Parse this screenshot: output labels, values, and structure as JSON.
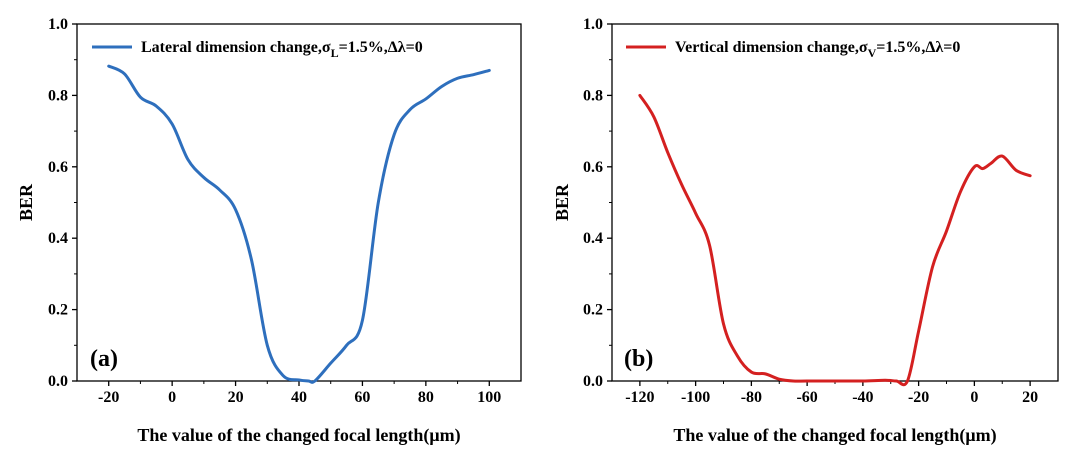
{
  "chart_data": [
    {
      "type": "line",
      "panel_label": "(a)",
      "xlabel": "The value of the changed focal length(μm)",
      "ylabel": "BER",
      "xlim": [
        -30,
        110
      ],
      "ylim": [
        0,
        1.0
      ],
      "xticks": [
        -20,
        0,
        20,
        40,
        60,
        80,
        100
      ],
      "yticks": [
        0.0,
        0.2,
        0.4,
        0.6,
        0.8,
        1.0
      ],
      "xtick_labels": [
        "-20",
        "0",
        "20",
        "40",
        "60",
        "80",
        "100"
      ],
      "ytick_labels": [
        "0.0",
        "0.2",
        "0.4",
        "0.6",
        "0.8",
        "1.0"
      ],
      "grid": false,
      "legend_position": "top",
      "legend": {
        "prefix": "Lateral dimension change,σ",
        "sub": "L",
        "suffix": "=1.5%,Δλ=0"
      },
      "series": [
        {
          "color": "#2e6fbd",
          "x": [
            -20,
            -15,
            -10,
            -5,
            0,
            5,
            10,
            15,
            20,
            25,
            30,
            35,
            40,
            43,
            45,
            50,
            55,
            60,
            65,
            70,
            75,
            80,
            85,
            90,
            95,
            100
          ],
          "y": [
            0.882,
            0.86,
            0.795,
            0.77,
            0.72,
            0.62,
            0.57,
            0.535,
            0.48,
            0.34,
            0.1,
            0.015,
            0.003,
            0.0,
            0.0,
            0.05,
            0.1,
            0.17,
            0.5,
            0.69,
            0.76,
            0.79,
            0.825,
            0.848,
            0.858,
            0.87
          ]
        }
      ]
    },
    {
      "type": "line",
      "panel_label": "(b)",
      "xlabel": "The value of the changed focal length(μm)",
      "ylabel": "BER",
      "xlim": [
        -130,
        30
      ],
      "ylim": [
        0,
        1.0
      ],
      "xticks": [
        -120,
        -100,
        -80,
        -60,
        -40,
        -20,
        0,
        20
      ],
      "yticks": [
        0.0,
        0.2,
        0.4,
        0.6,
        0.8,
        1.0
      ],
      "xtick_labels": [
        "-120",
        "-100",
        "-80",
        "-60",
        "-40",
        "-20",
        "0",
        "20"
      ],
      "ytick_labels": [
        "0.0",
        "0.2",
        "0.4",
        "0.6",
        "0.8",
        "1.0"
      ],
      "grid": false,
      "legend_position": "top",
      "legend": {
        "prefix": "Vertical dimension change,σ",
        "sub": "V",
        "suffix": "=1.5%,Δλ=0"
      },
      "series": [
        {
          "color": "#d42020",
          "x": [
            -120,
            -115,
            -110,
            -105,
            -100,
            -95,
            -90,
            -85,
            -80,
            -75,
            -70,
            -65,
            -60,
            -50,
            -40,
            -32,
            -28,
            -24,
            -20,
            -15,
            -10,
            -5,
            0,
            3,
            6,
            10,
            15,
            20
          ],
          "y": [
            0.8,
            0.74,
            0.64,
            0.55,
            0.47,
            0.38,
            0.16,
            0.07,
            0.025,
            0.02,
            0.005,
            0.0,
            0.0,
            0.0,
            0.0,
            0.002,
            0.0,
            0.0,
            0.14,
            0.32,
            0.42,
            0.53,
            0.6,
            0.595,
            0.61,
            0.63,
            0.59,
            0.575
          ]
        }
      ]
    }
  ]
}
